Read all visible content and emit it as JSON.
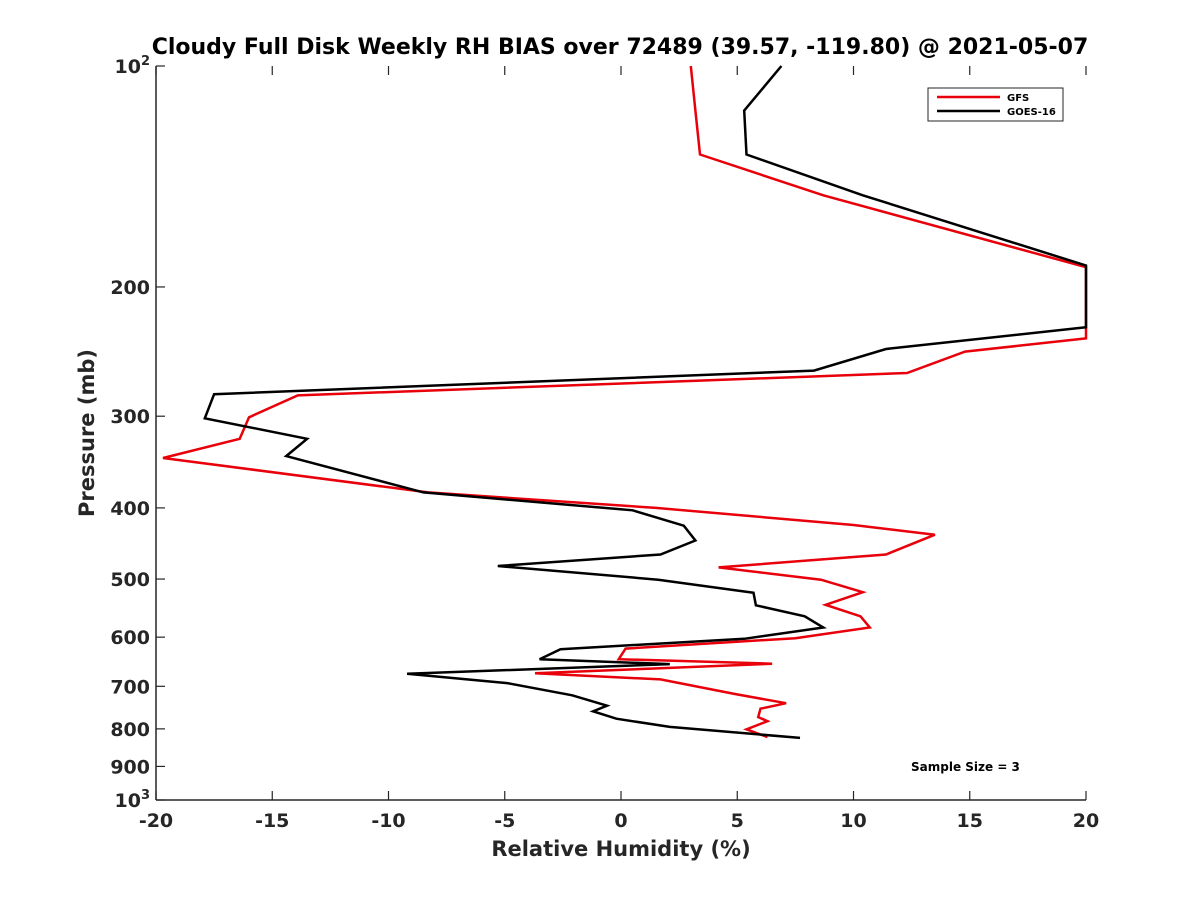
{
  "chart_data": {
    "type": "line",
    "title": "Cloudy Full Disk Weekly RH BIAS over 72489 (39.57, -119.80) @ 2021-05-07",
    "xlabel": "Relative Humidity (%)",
    "ylabel": "Pressure (mb)",
    "xlim": [
      -20,
      20
    ],
    "ylim": [
      100,
      1000
    ],
    "y_scale": "log",
    "y_reversed": true,
    "grid": false,
    "legend_position": "top-right",
    "x_ticks": [
      "-20",
      "-15",
      "-10",
      "-5",
      "0",
      "5",
      "10",
      "15",
      "20"
    ],
    "y_ticks": [
      {
        "value": 100,
        "base": "10",
        "exp": "2"
      },
      {
        "value": 200,
        "label": "200"
      },
      {
        "value": 300,
        "label": "300"
      },
      {
        "value": 400,
        "label": "400"
      },
      {
        "value": 500,
        "label": "500"
      },
      {
        "value": 600,
        "label": "600"
      },
      {
        "value": 700,
        "label": "700"
      },
      {
        "value": 800,
        "label": "800"
      },
      {
        "value": 900,
        "label": "900"
      },
      {
        "value": 1000,
        "base": "10",
        "exp": "3"
      }
    ],
    "series": [
      {
        "name": "GFS",
        "color": "#e8000b",
        "points": [
          [
            3.0,
            100
          ],
          [
            3.2,
            115
          ],
          [
            3.4,
            132
          ],
          [
            8.7,
            150
          ],
          [
            20,
            188
          ],
          [
            20,
            235
          ],
          [
            14.8,
            245
          ],
          [
            12.3,
            262
          ],
          [
            -13.9,
            281
          ],
          [
            -16.0,
            301
          ],
          [
            -16.4,
            322
          ],
          [
            -19.7,
            342
          ],
          [
            -8.3,
            381
          ],
          [
            1.5,
            400
          ],
          [
            10.0,
            422
          ],
          [
            13.5,
            435
          ],
          [
            11.4,
            463
          ],
          [
            4.2,
            482
          ],
          [
            8.6,
            501
          ],
          [
            10.4,
            521
          ],
          [
            8.8,
            542
          ],
          [
            10.3,
            562
          ],
          [
            10.7,
            582
          ],
          [
            7.5,
            602
          ],
          [
            0.2,
            622
          ],
          [
            -0.1,
            643
          ],
          [
            6.5,
            652
          ],
          [
            -3.7,
            672
          ],
          [
            1.7,
            685
          ],
          [
            4.9,
            717
          ],
          [
            7.1,
            738
          ],
          [
            6.0,
            751
          ],
          [
            5.9,
            771
          ],
          [
            6.3,
            781
          ],
          [
            5.4,
            801
          ],
          [
            6.3,
            821
          ]
        ]
      },
      {
        "name": "GOES-16",
        "color": "#000000",
        "points": [
          [
            6.9,
            100
          ],
          [
            5.3,
            115
          ],
          [
            5.4,
            132
          ],
          [
            10.4,
            150
          ],
          [
            20,
            187
          ],
          [
            20,
            227
          ],
          [
            11.4,
            243
          ],
          [
            8.3,
            260
          ],
          [
            -17.5,
            280
          ],
          [
            -17.9,
            302
          ],
          [
            -13.5,
            322
          ],
          [
            -14.4,
            340
          ],
          [
            -8.5,
            381
          ],
          [
            0.5,
            403
          ],
          [
            2.7,
            423
          ],
          [
            3.2,
            443
          ],
          [
            1.7,
            463
          ],
          [
            -5.3,
            480
          ],
          [
            1.6,
            501
          ],
          [
            5.7,
            522
          ],
          [
            5.8,
            543
          ],
          [
            7.9,
            562
          ],
          [
            8.7,
            582
          ],
          [
            5.3,
            603
          ],
          [
            -2.6,
            623
          ],
          [
            -3.5,
            643
          ],
          [
            2.1,
            653
          ],
          [
            -9.2,
            673
          ],
          [
            -4.9,
            693
          ],
          [
            -2.1,
            720
          ],
          [
            -0.6,
            744
          ],
          [
            -1.2,
            757
          ],
          [
            -0.2,
            775
          ],
          [
            2.1,
            795
          ],
          [
            7.7,
            823
          ]
        ]
      }
    ],
    "annotations": [
      "Sample Size = 3"
    ]
  }
}
